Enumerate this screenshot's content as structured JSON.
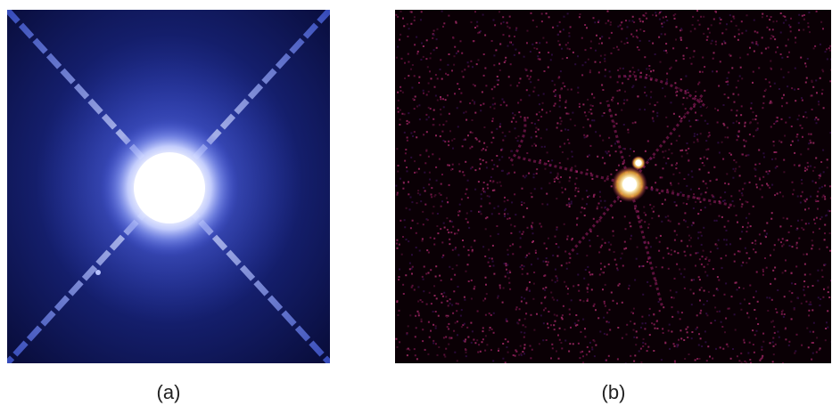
{
  "figure": {
    "panels": [
      {
        "id": "a",
        "label": "(a)",
        "background_color": "#0a1040",
        "glow_color": "#ffffff",
        "spike_color": "#4a63d8"
      },
      {
        "id": "b",
        "label": "(b)",
        "background_color": "#0a0005",
        "glow_color": "#fffbe0",
        "spike_color": "#a0206a",
        "noise_color": "#6b1444"
      }
    ]
  }
}
